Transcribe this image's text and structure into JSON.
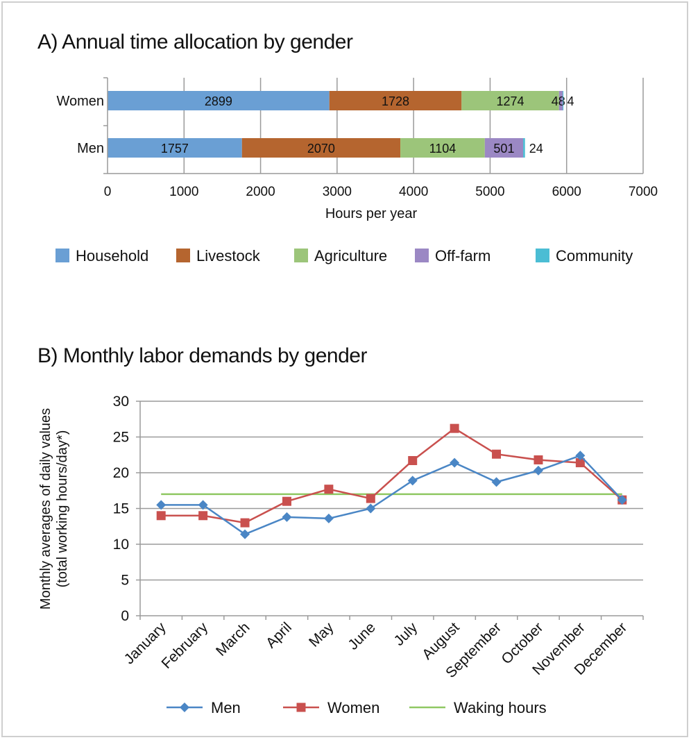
{
  "chart_data": [
    {
      "type": "bar",
      "orientation": "horizontal",
      "stacked": true,
      "title": "A) Annual time allocation by gender",
      "xlabel": "Hours per year",
      "ylabel": "",
      "xlim": [
        0,
        7000
      ],
      "xticks": [
        "0",
        "1000",
        "2000",
        "3000",
        "4000",
        "5000",
        "6000",
        "7000"
      ],
      "categories": [
        "Women",
        "Men"
      ],
      "series": [
        {
          "name": "Household",
          "color": "#6a9fd4",
          "values": [
            2899,
            1757
          ]
        },
        {
          "name": "Livestock",
          "color": "#b5652f",
          "values": [
            1728,
            2070
          ]
        },
        {
          "name": "Agriculture",
          "color": "#9cc57a",
          "values": [
            1274,
            1104
          ]
        },
        {
          "name": "Off-farm",
          "color": "#9b88c4",
          "values": [
            48,
            501
          ]
        },
        {
          "name": "Community",
          "color": "#4bbdd4",
          "values": [
            4,
            24
          ]
        }
      ],
      "grid": true,
      "legend": "bottom"
    },
    {
      "type": "line",
      "title": "B) Monthly labor demands by gender",
      "xlabel": "",
      "ylabel": [
        "Monthly averages of daily values",
        "(total working hours/day*)"
      ],
      "ylim": [
        0,
        30
      ],
      "yticks": [
        "0",
        "5",
        "10",
        "15",
        "20",
        "25",
        "30"
      ],
      "categories": [
        "January",
        "February",
        "March",
        "April",
        "May",
        "June",
        "July",
        "August",
        "September",
        "October",
        "November",
        "December"
      ],
      "series": [
        {
          "name": "Men",
          "color": "#4a86c5",
          "marker": "diamond",
          "values": [
            15.5,
            15.5,
            11.4,
            13.8,
            13.6,
            15.0,
            18.9,
            21.4,
            18.7,
            20.3,
            22.4,
            16.2
          ]
        },
        {
          "name": "Women",
          "color": "#c9504e",
          "marker": "square",
          "values": [
            14.0,
            14.0,
            13.0,
            16.0,
            17.7,
            16.4,
            21.7,
            26.2,
            22.6,
            21.8,
            21.4,
            16.2
          ]
        },
        {
          "name": "Waking hours",
          "color": "#8fc862",
          "marker": "none",
          "values": [
            17,
            17,
            17,
            17,
            17,
            17,
            17,
            17,
            17,
            17,
            17,
            17
          ]
        }
      ],
      "grid": true,
      "legend": "bottom"
    }
  ]
}
